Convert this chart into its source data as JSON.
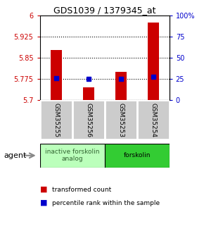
{
  "title": "GDS1039 / 1379345_at",
  "samples": [
    "GSM35255",
    "GSM35256",
    "GSM35253",
    "GSM35254"
  ],
  "bar_values": [
    5.878,
    5.745,
    5.8,
    5.975
  ],
  "percentile_values": [
    26,
    25,
    25,
    28
  ],
  "ylim_left": [
    5.7,
    6.0
  ],
  "ylim_right": [
    0,
    100
  ],
  "yticks_left": [
    5.7,
    5.775,
    5.85,
    5.925,
    6.0
  ],
  "ytick_labels_left": [
    "5.7",
    "5.775",
    "5.85",
    "5.925",
    "6"
  ],
  "yticks_right": [
    0,
    25,
    50,
    75,
    100
  ],
  "ytick_labels_right": [
    "0",
    "25",
    "50",
    "75",
    "100%"
  ],
  "bar_color": "#cc0000",
  "dot_color": "#0000cc",
  "bar_width": 0.35,
  "agent_groups": [
    {
      "label": "inactive forskolin\nanalog",
      "samples": [
        0,
        1
      ],
      "color": "#bbffbb",
      "text_color": "#336633"
    },
    {
      "label": "forskolin",
      "samples": [
        2,
        3
      ],
      "color": "#33cc33",
      "text_color": "#000000"
    }
  ],
  "agent_label": "agent",
  "legend_entries": [
    {
      "color": "#cc0000",
      "label": "transformed count"
    },
    {
      "color": "#0000cc",
      "label": "percentile rank within the sample"
    }
  ],
  "grid_color": "black",
  "title_color": "black",
  "left_tick_color": "#cc0000",
  "right_tick_color": "#0000cc",
  "sample_box_color": "#cccccc",
  "base_value": 5.7,
  "fig_width": 2.9,
  "fig_height": 3.45,
  "dpi": 100
}
